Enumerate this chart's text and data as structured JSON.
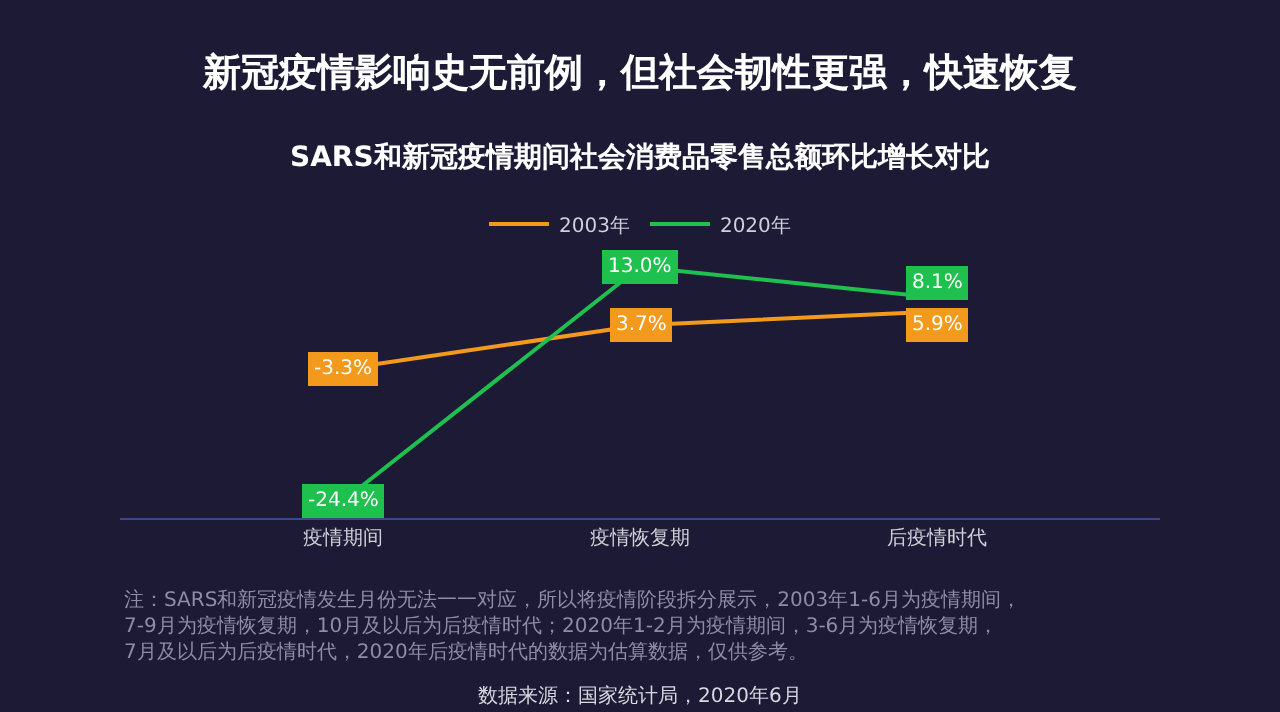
{
  "chart_data": {
    "type": "line",
    "title": "新冠疫情影响史无前例，但社会韧性更强，快速恢复",
    "subtitle": "SARS和新冠疫情期间社会消费品零售总额环比增长对比",
    "categories": [
      "疫情期间",
      "疫情恢复期",
      "后疫情时代"
    ],
    "series": [
      {
        "name": "2003年",
        "color": "#f39a1c",
        "values": [
          -3.3,
          3.7,
          5.9
        ],
        "value_labels": [
          "-3.3%",
          "3.7%",
          "5.9%"
        ]
      },
      {
        "name": "2020年",
        "color": "#1ec04e",
        "values": [
          -24.4,
          13.0,
          8.1
        ],
        "value_labels": [
          "-24.4%",
          "13.0%",
          "8.1%"
        ]
      }
    ],
    "legend": "top",
    "line_style": "solid",
    "annotations": [
      "注：SARS和新冠疫情发生月份无法一一对应，所以将疫情阶段拆分展示，2003年1-6月为疫情期间，7-9月为疫情恢复期，10月及以后为后疫情时代；2020年1-2月为疫情期间，3-6月为疫情恢复期，7月及以后为后疫情时代，2020年后疫情时代的数据为估算数据，仅供参考。",
      "数据来源：国家统计局，2020年6月"
    ]
  }
}
